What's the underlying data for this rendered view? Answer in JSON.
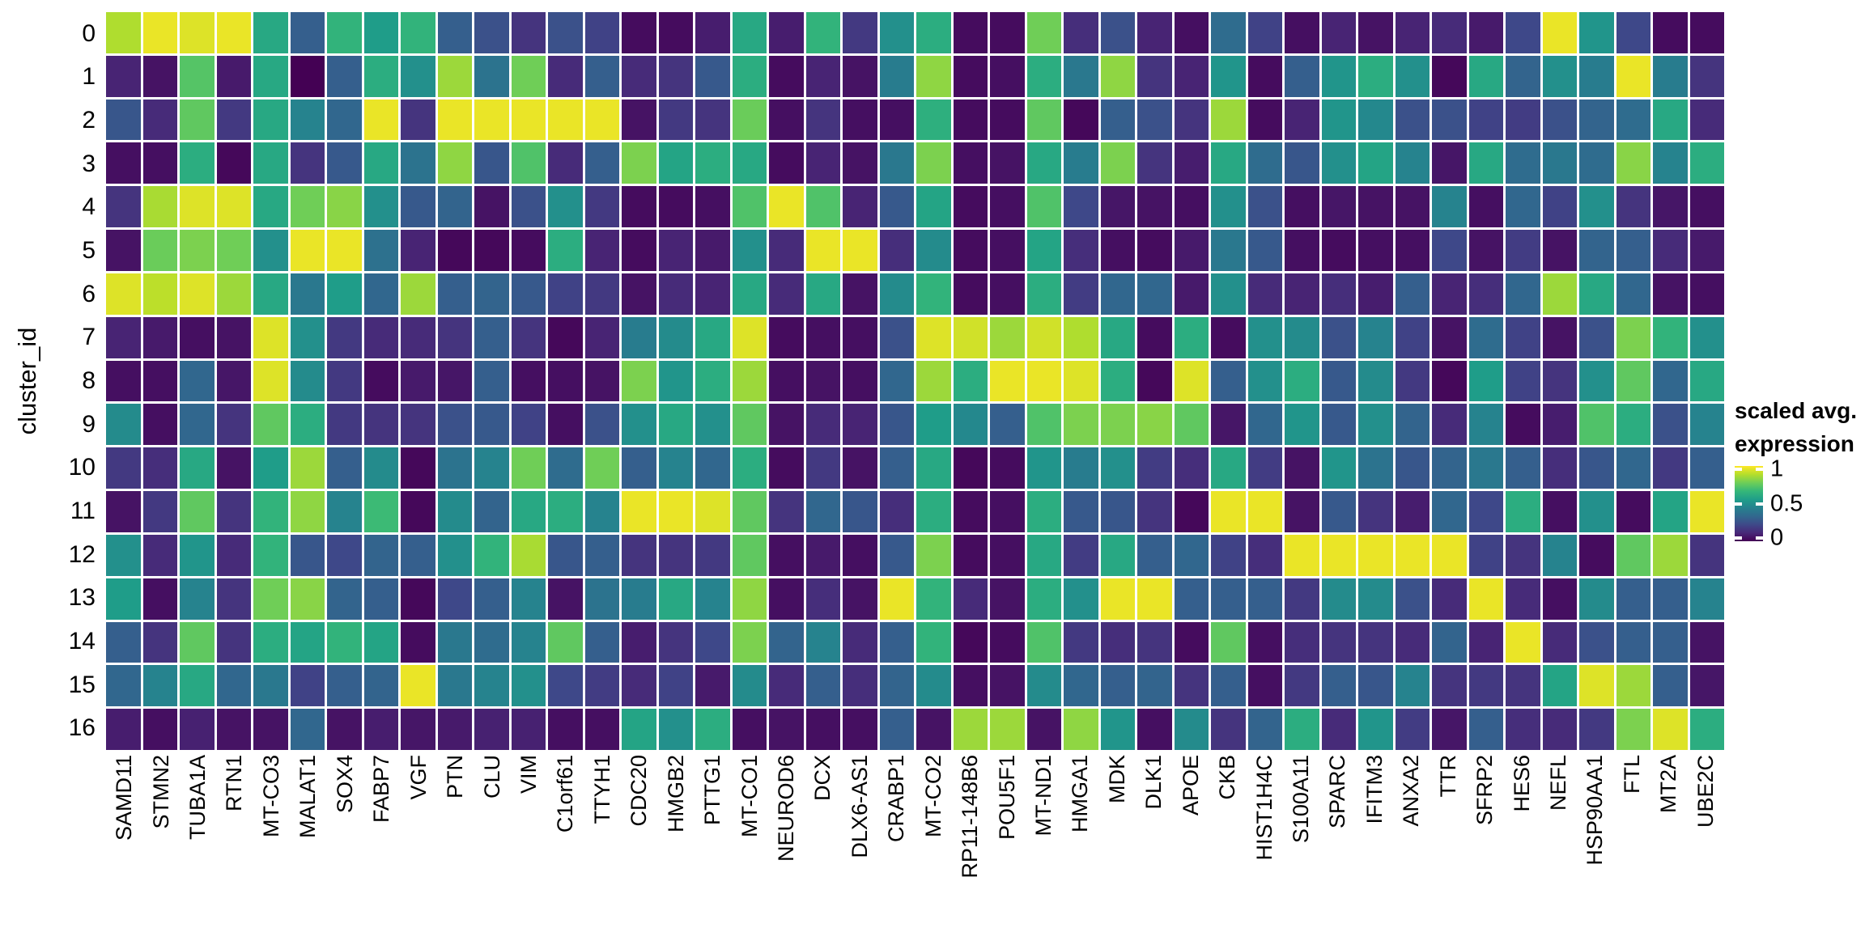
{
  "figure": {
    "background": "#ffffff",
    "gridline_color": "#ffffff"
  },
  "legend": {
    "title_line1": "scaled avg.",
    "title_line2": "expression",
    "ticks": [
      {
        "label": "1",
        "frac_from_top": 0.04
      },
      {
        "label": "0.5",
        "frac_from_top": 0.5
      },
      {
        "label": "0",
        "frac_from_top": 0.96
      }
    ]
  },
  "chart_data": {
    "type": "heatmap",
    "title": "",
    "xlabel": "",
    "ylabel": "cluster_id",
    "legend_title": "scaled avg. expression",
    "legend_position": "right",
    "grid": false,
    "vmin": 0,
    "vmax": 1,
    "colormap": "viridis",
    "colormap_anchors": [
      "#440154",
      "#482878",
      "#3e4989",
      "#31688e",
      "#26828e",
      "#1f9e89",
      "#35b779",
      "#6ece58",
      "#b5de2b",
      "#fde725"
    ],
    "categories_x": [
      "SAMD11",
      "STMN2",
      "TUBA1A",
      "RTN1",
      "MT-CO3",
      "MALAT1",
      "SOX4",
      "FABP7",
      "VGF",
      "PTN",
      "CLU",
      "VIM",
      "C1orf61",
      "TTYH1",
      "CDC20",
      "HMGB2",
      "PTTG1",
      "MT-CO1",
      "NEUROD6",
      "DCX",
      "DLX6-AS1",
      "CRABP1",
      "MT-CO2",
      "RP11-148B6",
      "POU5F1",
      "MT-ND1",
      "HMGA1",
      "MDK",
      "DLK1",
      "APOE",
      "CKB",
      "HIST1H4C",
      "S100A11",
      "SPARC",
      "IFITM3",
      "ANXA2",
      "TTR",
      "SFRP2",
      "HES6",
      "NEFL",
      "HSP90AA1",
      "FTL",
      "MT2A",
      "UBE2C"
    ],
    "categories_y": [
      "0",
      "1",
      "2",
      "3",
      "4",
      "5",
      "6",
      "7",
      "8",
      "9",
      "10",
      "11",
      "12",
      "13",
      "14",
      "15",
      "16"
    ],
    "values": [
      [
        0.88,
        0.97,
        0.95,
        0.97,
        0.6,
        0.3,
        0.65,
        0.55,
        0.65,
        0.3,
        0.25,
        0.15,
        0.25,
        0.2,
        0.03,
        0.03,
        0.08,
        0.6,
        0.08,
        0.65,
        0.17,
        0.5,
        0.62,
        0.03,
        0.03,
        0.78,
        0.13,
        0.25,
        0.1,
        0.04,
        0.35,
        0.2,
        0.04,
        0.1,
        0.05,
        0.1,
        0.12,
        0.07,
        0.22,
        0.97,
        0.52,
        0.22,
        0.03,
        0.03
      ],
      [
        0.1,
        0.05,
        0.73,
        0.07,
        0.6,
        0.0,
        0.3,
        0.62,
        0.5,
        0.85,
        0.38,
        0.78,
        0.12,
        0.3,
        0.12,
        0.15,
        0.28,
        0.62,
        0.03,
        0.1,
        0.05,
        0.42,
        0.83,
        0.03,
        0.04,
        0.62,
        0.4,
        0.83,
        0.15,
        0.1,
        0.52,
        0.03,
        0.3,
        0.52,
        0.62,
        0.5,
        0.02,
        0.6,
        0.32,
        0.5,
        0.42,
        0.97,
        0.42,
        0.15
      ],
      [
        0.27,
        0.12,
        0.75,
        0.17,
        0.6,
        0.45,
        0.33,
        0.97,
        0.15,
        0.97,
        0.97,
        0.97,
        0.97,
        0.97,
        0.05,
        0.17,
        0.15,
        0.77,
        0.04,
        0.15,
        0.04,
        0.04,
        0.63,
        0.03,
        0.03,
        0.75,
        0.02,
        0.3,
        0.25,
        0.15,
        0.85,
        0.03,
        0.1,
        0.52,
        0.47,
        0.25,
        0.25,
        0.2,
        0.18,
        0.25,
        0.32,
        0.35,
        0.6,
        0.12
      ],
      [
        0.04,
        0.04,
        0.62,
        0.02,
        0.6,
        0.15,
        0.28,
        0.6,
        0.38,
        0.83,
        0.27,
        0.72,
        0.12,
        0.3,
        0.8,
        0.58,
        0.62,
        0.6,
        0.03,
        0.1,
        0.05,
        0.4,
        0.8,
        0.04,
        0.05,
        0.6,
        0.42,
        0.8,
        0.15,
        0.08,
        0.6,
        0.35,
        0.27,
        0.5,
        0.58,
        0.45,
        0.06,
        0.6,
        0.35,
        0.4,
        0.35,
        0.82,
        0.45,
        0.62
      ],
      [
        0.15,
        0.87,
        0.95,
        0.95,
        0.6,
        0.78,
        0.82,
        0.5,
        0.28,
        0.32,
        0.05,
        0.25,
        0.5,
        0.17,
        0.03,
        0.03,
        0.04,
        0.72,
        0.97,
        0.72,
        0.1,
        0.28,
        0.58,
        0.03,
        0.04,
        0.72,
        0.22,
        0.06,
        0.05,
        0.04,
        0.5,
        0.25,
        0.04,
        0.06,
        0.05,
        0.05,
        0.45,
        0.04,
        0.33,
        0.2,
        0.5,
        0.15,
        0.06,
        0.04
      ],
      [
        0.05,
        0.77,
        0.8,
        0.78,
        0.5,
        0.97,
        0.97,
        0.37,
        0.1,
        0.02,
        0.02,
        0.03,
        0.62,
        0.1,
        0.03,
        0.1,
        0.07,
        0.5,
        0.12,
        0.97,
        0.97,
        0.13,
        0.48,
        0.03,
        0.04,
        0.58,
        0.13,
        0.04,
        0.03,
        0.07,
        0.4,
        0.28,
        0.04,
        0.03,
        0.04,
        0.04,
        0.22,
        0.05,
        0.18,
        0.05,
        0.32,
        0.3,
        0.12,
        0.07
      ],
      [
        0.95,
        0.9,
        0.95,
        0.85,
        0.6,
        0.4,
        0.55,
        0.33,
        0.85,
        0.3,
        0.32,
        0.28,
        0.2,
        0.17,
        0.05,
        0.12,
        0.1,
        0.6,
        0.12,
        0.6,
        0.05,
        0.48,
        0.65,
        0.03,
        0.04,
        0.62,
        0.18,
        0.33,
        0.33,
        0.07,
        0.5,
        0.12,
        0.1,
        0.13,
        0.08,
        0.3,
        0.1,
        0.13,
        0.33,
        0.85,
        0.6,
        0.33,
        0.05,
        0.04
      ],
      [
        0.1,
        0.07,
        0.04,
        0.05,
        0.95,
        0.5,
        0.17,
        0.12,
        0.12,
        0.15,
        0.3,
        0.15,
        0.02,
        0.1,
        0.42,
        0.48,
        0.6,
        0.95,
        0.03,
        0.04,
        0.04,
        0.25,
        0.95,
        0.93,
        0.85,
        0.93,
        0.88,
        0.6,
        0.03,
        0.62,
        0.03,
        0.5,
        0.48,
        0.25,
        0.45,
        0.2,
        0.05,
        0.35,
        0.2,
        0.05,
        0.25,
        0.8,
        0.65,
        0.5
      ],
      [
        0.04,
        0.04,
        0.33,
        0.06,
        0.95,
        0.48,
        0.17,
        0.03,
        0.07,
        0.06,
        0.3,
        0.04,
        0.04,
        0.05,
        0.8,
        0.52,
        0.62,
        0.85,
        0.04,
        0.05,
        0.04,
        0.33,
        0.85,
        0.62,
        0.97,
        0.97,
        0.95,
        0.62,
        0.02,
        0.95,
        0.3,
        0.5,
        0.62,
        0.28,
        0.48,
        0.17,
        0.02,
        0.55,
        0.2,
        0.15,
        0.5,
        0.75,
        0.33,
        0.6
      ],
      [
        0.48,
        0.04,
        0.33,
        0.15,
        0.75,
        0.62,
        0.17,
        0.15,
        0.15,
        0.25,
        0.28,
        0.2,
        0.04,
        0.25,
        0.5,
        0.6,
        0.5,
        0.75,
        0.05,
        0.12,
        0.1,
        0.27,
        0.55,
        0.47,
        0.3,
        0.72,
        0.8,
        0.8,
        0.82,
        0.75,
        0.06,
        0.33,
        0.52,
        0.28,
        0.5,
        0.32,
        0.12,
        0.45,
        0.03,
        0.08,
        0.72,
        0.62,
        0.25,
        0.45
      ],
      [
        0.17,
        0.13,
        0.6,
        0.05,
        0.55,
        0.85,
        0.3,
        0.48,
        0.02,
        0.38,
        0.45,
        0.78,
        0.35,
        0.78,
        0.3,
        0.45,
        0.33,
        0.62,
        0.03,
        0.17,
        0.05,
        0.3,
        0.6,
        0.02,
        0.03,
        0.52,
        0.42,
        0.5,
        0.18,
        0.13,
        0.6,
        0.18,
        0.05,
        0.52,
        0.38,
        0.27,
        0.32,
        0.4,
        0.3,
        0.13,
        0.27,
        0.33,
        0.17,
        0.3
      ],
      [
        0.05,
        0.17,
        0.75,
        0.15,
        0.65,
        0.83,
        0.45,
        0.68,
        0.02,
        0.48,
        0.32,
        0.6,
        0.62,
        0.45,
        0.97,
        0.97,
        0.95,
        0.75,
        0.15,
        0.33,
        0.27,
        0.13,
        0.62,
        0.03,
        0.04,
        0.62,
        0.28,
        0.27,
        0.15,
        0.02,
        0.97,
        0.97,
        0.05,
        0.28,
        0.15,
        0.08,
        0.33,
        0.22,
        0.62,
        0.04,
        0.5,
        0.03,
        0.58,
        0.97
      ],
      [
        0.5,
        0.12,
        0.52,
        0.12,
        0.65,
        0.27,
        0.22,
        0.32,
        0.3,
        0.5,
        0.65,
        0.87,
        0.27,
        0.3,
        0.15,
        0.15,
        0.17,
        0.75,
        0.04,
        0.07,
        0.04,
        0.28,
        0.8,
        0.03,
        0.04,
        0.6,
        0.18,
        0.6,
        0.3,
        0.33,
        0.2,
        0.13,
        0.97,
        0.97,
        0.97,
        0.97,
        0.97,
        0.2,
        0.15,
        0.45,
        0.03,
        0.75,
        0.85,
        0.15
      ],
      [
        0.55,
        0.04,
        0.45,
        0.15,
        0.78,
        0.82,
        0.32,
        0.3,
        0.02,
        0.22,
        0.3,
        0.45,
        0.05,
        0.38,
        0.42,
        0.6,
        0.45,
        0.83,
        0.04,
        0.13,
        0.05,
        0.97,
        0.65,
        0.12,
        0.05,
        0.62,
        0.5,
        0.97,
        0.97,
        0.3,
        0.3,
        0.3,
        0.17,
        0.48,
        0.48,
        0.25,
        0.12,
        0.97,
        0.12,
        0.04,
        0.48,
        0.3,
        0.3,
        0.45
      ],
      [
        0.3,
        0.15,
        0.75,
        0.15,
        0.62,
        0.58,
        0.65,
        0.58,
        0.03,
        0.4,
        0.35,
        0.45,
        0.75,
        0.3,
        0.08,
        0.15,
        0.22,
        0.8,
        0.32,
        0.45,
        0.12,
        0.3,
        0.65,
        0.02,
        0.03,
        0.72,
        0.17,
        0.13,
        0.15,
        0.03,
        0.75,
        0.04,
        0.13,
        0.15,
        0.15,
        0.12,
        0.32,
        0.1,
        0.97,
        0.12,
        0.25,
        0.3,
        0.3,
        0.05
      ],
      [
        0.33,
        0.45,
        0.6,
        0.33,
        0.4,
        0.2,
        0.3,
        0.32,
        0.97,
        0.4,
        0.45,
        0.5,
        0.22,
        0.18,
        0.12,
        0.2,
        0.07,
        0.48,
        0.12,
        0.3,
        0.13,
        0.32,
        0.48,
        0.04,
        0.05,
        0.48,
        0.33,
        0.3,
        0.32,
        0.15,
        0.3,
        0.04,
        0.17,
        0.3,
        0.27,
        0.45,
        0.15,
        0.17,
        0.15,
        0.58,
        0.95,
        0.85,
        0.3,
        0.06
      ],
      [
        0.08,
        0.04,
        0.09,
        0.05,
        0.05,
        0.33,
        0.05,
        0.08,
        0.06,
        0.07,
        0.09,
        0.09,
        0.04,
        0.04,
        0.58,
        0.5,
        0.62,
        0.04,
        0.05,
        0.04,
        0.04,
        0.3,
        0.05,
        0.85,
        0.85,
        0.05,
        0.83,
        0.52,
        0.04,
        0.48,
        0.15,
        0.32,
        0.62,
        0.12,
        0.52,
        0.18,
        0.06,
        0.3,
        0.13,
        0.12,
        0.17,
        0.8,
        0.95,
        0.62
      ]
    ]
  }
}
